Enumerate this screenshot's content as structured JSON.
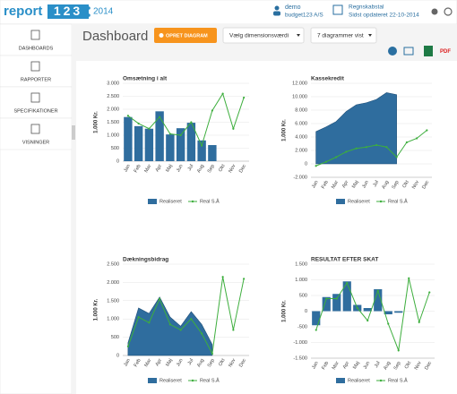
{
  "header": {
    "logo_text": "report",
    "logo_number": "123",
    "year": "2014",
    "user": "demo",
    "company": "budget123 A/S",
    "source": "Regnskabstal",
    "updated": "Sidst opdateret 22-10-2014"
  },
  "sidebar": {
    "items": [
      "DASHBOARDS",
      "RAPPORTER",
      "SPECIFIKATIONER",
      "VISNINGER"
    ]
  },
  "toolbar": {
    "title": "Dashboard",
    "create_button": "OPRET DIAGRAM",
    "dimension_select": "Vælg dimensionsværdi",
    "charts_shown": "7 diagrammer vist",
    "pdf": "PDF"
  },
  "chart_data": [
    {
      "type": "bar",
      "title": "Omsætning i alt",
      "y_label": "1.000 Kr.",
      "categories": [
        "Jan",
        "Feb",
        "Mar",
        "Apr",
        "Maj",
        "Jun",
        "Jul",
        "Aug",
        "Sep",
        "Okt",
        "Nov",
        "Dec"
      ],
      "series": [
        {
          "name": "Realiseret",
          "type": "bar",
          "color": "#2f6d9e",
          "values": [
            1700,
            1350,
            1250,
            1920,
            1030,
            1270,
            1480,
            800,
            620,
            null,
            null,
            null
          ]
        },
        {
          "name": "Real S.Å",
          "type": "line",
          "color": "#3dae3d",
          "values": [
            1750,
            1450,
            1250,
            1700,
            1050,
            1000,
            1500,
            600,
            1950,
            2600,
            1250,
            2450
          ]
        }
      ],
      "ylim": [
        0,
        3000
      ],
      "yticks": [
        0,
        500,
        {
          "value": 1000,
          "label": "1.000"
        },
        {
          "value": 1500,
          "label": "1.500"
        },
        {
          "value": 2000,
          "label": "2.000"
        },
        {
          "value": 2500,
          "label": "2.500"
        },
        {
          "value": 3000,
          "label": "3.000"
        }
      ],
      "grid": true
    },
    {
      "type": "area",
      "title": "Kassekredit",
      "y_label": "1.000 Kr.",
      "categories": [
        "Jan",
        "Feb",
        "Mar",
        "Apr",
        "Maj",
        "Jun",
        "Jul",
        "Aug",
        "Sep",
        "Okt",
        "Nov",
        "Dec"
      ],
      "series": [
        {
          "name": "Realiseret",
          "type": "area",
          "color": "#2f6d9e",
          "values": [
            4800,
            5500,
            6300,
            7800,
            8800,
            9100,
            9600,
            10600,
            10300,
            null,
            null,
            null
          ]
        },
        {
          "name": "Real S.Å",
          "type": "line",
          "color": "#3dae3d",
          "values": [
            -300,
            300,
            1000,
            1800,
            2300,
            2500,
            2800,
            2500,
            1000,
            3200,
            3800,
            5000
          ]
        }
      ],
      "ylim": [
        -2000,
        12000
      ],
      "yticks": [
        {
          "value": -2000,
          "label": "-2.000"
        },
        0,
        {
          "value": 2000,
          "label": "2.000"
        },
        {
          "value": 4000,
          "label": "4.000"
        },
        {
          "value": 6000,
          "label": "6.000"
        },
        {
          "value": 8000,
          "label": "8.000"
        },
        {
          "value": 10000,
          "label": "10.000"
        },
        {
          "value": 12000,
          "label": "12.000"
        }
      ],
      "grid": true
    },
    {
      "type": "area",
      "title": "Dækningsbidrag",
      "y_label": "1.000 Kr.",
      "categories": [
        "Jan",
        "Feb",
        "Mar",
        "Apr",
        "Maj",
        "Jun",
        "Jul",
        "Aug",
        "Sep",
        "Okt",
        "Nov",
        "Dec"
      ],
      "series": [
        {
          "name": "Realiseret",
          "type": "area",
          "color": "#2f6d9e",
          "values": [
            350,
            1300,
            1150,
            1600,
            1050,
            800,
            1200,
            850,
            300,
            null,
            null,
            null
          ]
        },
        {
          "name": "Real S.Å",
          "type": "line",
          "color": "#3dae3d",
          "values": [
            250,
            1050,
            900,
            1550,
            850,
            700,
            1000,
            600,
            50,
            2150,
            700,
            2100
          ]
        }
      ],
      "ylim": [
        0,
        2500
      ],
      "yticks": [
        0,
        500,
        {
          "value": 1000,
          "label": "1.000"
        },
        {
          "value": 1500,
          "label": "1.500"
        },
        {
          "value": 2000,
          "label": "2.000"
        },
        {
          "value": 2500,
          "label": "2.500"
        }
      ],
      "grid": true
    },
    {
      "type": "bar",
      "title": "RESULTAT EFTER SKAT",
      "y_label": "1.000 Kr.",
      "categories": [
        "Jan",
        "Feb",
        "Mar",
        "Apr",
        "Maj",
        "Jun",
        "Jul",
        "Aug",
        "Sep",
        "Okt",
        "Nov",
        "Dec"
      ],
      "series": [
        {
          "name": "Realiseret",
          "type": "bar",
          "color": "#2f6d9e",
          "values": [
            -450,
            450,
            550,
            950,
            200,
            100,
            700,
            -100,
            -50,
            null,
            null,
            null
          ]
        },
        {
          "name": "Real S.Å",
          "type": "line",
          "color": "#3dae3d",
          "values": [
            -600,
            400,
            400,
            900,
            100,
            -300,
            650,
            -400,
            -1250,
            1050,
            -350,
            600
          ]
        }
      ],
      "ylim": [
        -1500,
        1500
      ],
      "yticks": [
        {
          "value": -1500,
          "label": "-1.500"
        },
        {
          "value": -1000,
          "label": "-1.000"
        },
        -500,
        0,
        500,
        {
          "value": 1000,
          "label": "1.000"
        },
        {
          "value": 1500,
          "label": "1.500"
        }
      ],
      "grid": true
    }
  ]
}
